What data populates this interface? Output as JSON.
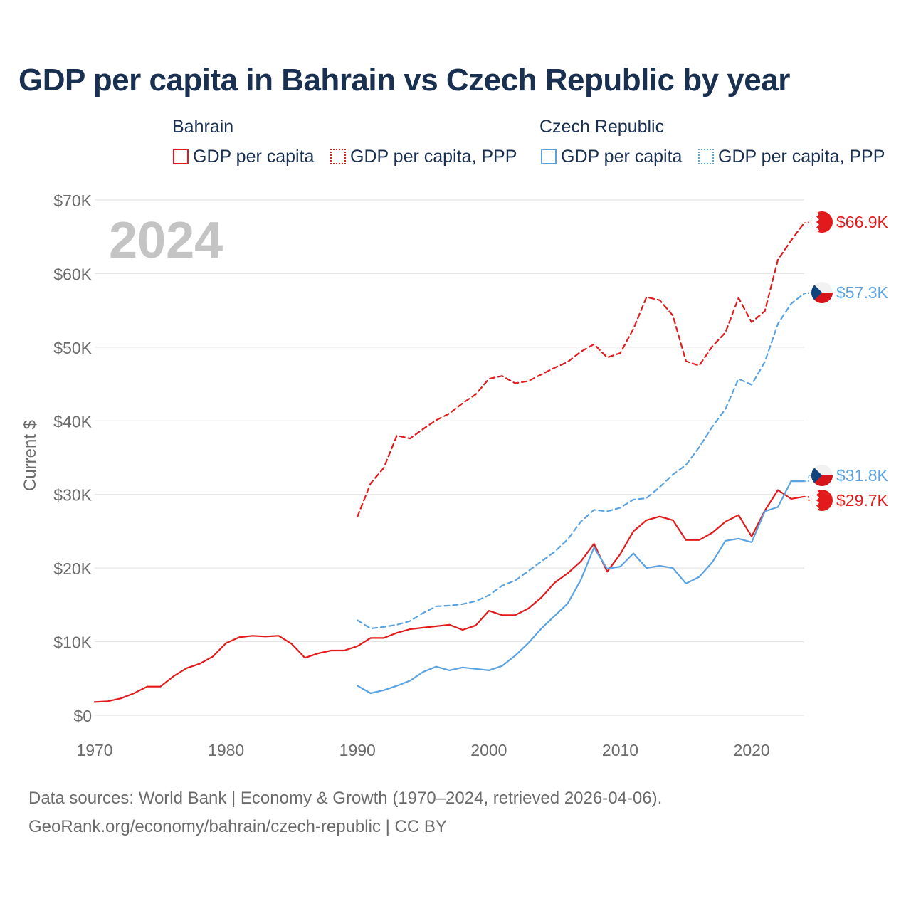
{
  "title": "GDP per capita in Bahrain vs Czech Republic by year",
  "legend": {
    "groups": [
      {
        "title": "Bahrain",
        "items": [
          "GDP per capita",
          "GDP per capita, PPP"
        ]
      },
      {
        "title": "Czech Republic",
        "items": [
          "GDP per capita",
          "GDP per capita, PPP"
        ]
      }
    ]
  },
  "footer": {
    "line1": "Data sources: World Bank | Economy & Growth (1970–2024, retrieved 2026-04-06).",
    "line2": "GeoRank.org/economy/bahrain/czech-republic | CC BY"
  },
  "colors": {
    "bahrain": "#e31a1c",
    "czech": "#5ba3e0",
    "grid": "#e6e6e6",
    "axis_text": "#6b6b6b",
    "year_watermark": "#c4c4c4"
  },
  "chart_data": {
    "type": "line",
    "year_label": "2024",
    "ylabel": "Current $",
    "xlim": [
      1970,
      2024
    ],
    "ylim": [
      0,
      70000
    ],
    "x_ticks": [
      1970,
      1980,
      1990,
      2000,
      2010,
      2020
    ],
    "x_tick_labels": [
      "1970",
      "1980",
      "1990",
      "2000",
      "2010",
      "2020"
    ],
    "y_ticks": [
      0,
      10000,
      20000,
      30000,
      40000,
      50000,
      60000,
      70000
    ],
    "y_tick_labels": [
      "$0",
      "$10K",
      "$20K",
      "$30K",
      "$40K",
      "$50K",
      "$60K",
      "$70K"
    ],
    "series": [
      {
        "name": "Bahrain GDP per capita",
        "country": "Bahrain",
        "style": "solid",
        "color": "#e31a1c",
        "end_label": "$29.7K",
        "x": [
          1970,
          1971,
          1972,
          1973,
          1974,
          1975,
          1976,
          1977,
          1978,
          1979,
          1980,
          1981,
          1982,
          1983,
          1984,
          1985,
          1986,
          1987,
          1988,
          1989,
          1990,
          1991,
          1992,
          1993,
          1994,
          1995,
          1996,
          1997,
          1998,
          1999,
          2000,
          2001,
          2002,
          2003,
          2004,
          2005,
          2006,
          2007,
          2008,
          2009,
          2010,
          2011,
          2012,
          2013,
          2014,
          2015,
          2016,
          2017,
          2018,
          2019,
          2020,
          2021,
          2022,
          2023,
          2024
        ],
        "y": [
          1800,
          1900,
          2300,
          3000,
          3900,
          3900,
          5300,
          6400,
          7000,
          8000,
          9800,
          10600,
          10800,
          10700,
          10800,
          9700,
          7800,
          8400,
          8800,
          8800,
          9400,
          10500,
          10500,
          11200,
          11700,
          11900,
          12100,
          12300,
          11600,
          12200,
          14200,
          13600,
          13600,
          14500,
          16000,
          18000,
          19300,
          20900,
          23300,
          19500,
          21900,
          25000,
          26500,
          27000,
          26500,
          23800,
          23800,
          24800,
          26300,
          27200,
          24300,
          27800,
          30600,
          29400,
          29700
        ]
      },
      {
        "name": "Bahrain GDP per capita, PPP",
        "country": "Bahrain",
        "style": "dashed",
        "color": "#e31a1c",
        "end_label": "$66.9K",
        "x": [
          1990,
          1991,
          1992,
          1993,
          1994,
          1995,
          1996,
          1997,
          1998,
          1999,
          2000,
          2001,
          2002,
          2003,
          2004,
          2005,
          2006,
          2007,
          2008,
          2009,
          2010,
          2011,
          2012,
          2013,
          2014,
          2015,
          2016,
          2017,
          2018,
          2019,
          2020,
          2021,
          2022,
          2023,
          2024
        ],
        "y": [
          27000,
          31500,
          33600,
          38000,
          37600,
          38900,
          40100,
          41000,
          42400,
          43600,
          45700,
          46100,
          45100,
          45400,
          46300,
          47200,
          48000,
          49400,
          50400,
          48600,
          49200,
          52500,
          56800,
          56400,
          54300,
          48100,
          47500,
          50100,
          52000,
          56700,
          53400,
          54900,
          61900,
          64500,
          66900
        ]
      },
      {
        "name": "Czech Republic GDP per capita",
        "country": "Czech Republic",
        "style": "solid",
        "color": "#5ba3e0",
        "end_label": "$31.8K",
        "x": [
          1990,
          1991,
          1992,
          1993,
          1994,
          1995,
          1996,
          1997,
          1998,
          1999,
          2000,
          2001,
          2002,
          2003,
          2004,
          2005,
          2006,
          2007,
          2008,
          2009,
          2010,
          2011,
          2012,
          2013,
          2014,
          2015,
          2016,
          2017,
          2018,
          2019,
          2020,
          2021,
          2022,
          2023,
          2024
        ],
        "y": [
          4000,
          3000,
          3400,
          4000,
          4700,
          5900,
          6600,
          6100,
          6500,
          6300,
          6100,
          6700,
          8100,
          9800,
          11800,
          13500,
          15200,
          18400,
          22800,
          19900,
          20200,
          22000,
          20000,
          20300,
          20000,
          17900,
          18800,
          20800,
          23700,
          24000,
          23500,
          27700,
          28300,
          31800,
          31800
        ]
      },
      {
        "name": "Czech Republic GDP per capita, PPP",
        "country": "Czech Republic",
        "style": "dashed",
        "color": "#5ba3e0",
        "end_label": "$57.3K",
        "x": [
          1990,
          1991,
          1992,
          1993,
          1994,
          1995,
          1996,
          1997,
          1998,
          1999,
          2000,
          2001,
          2002,
          2003,
          2004,
          2005,
          2006,
          2007,
          2008,
          2009,
          2010,
          2011,
          2012,
          2013,
          2014,
          2015,
          2016,
          2017,
          2018,
          2019,
          2020,
          2021,
          2022,
          2023,
          2024
        ],
        "y": [
          12900,
          11800,
          12000,
          12300,
          12800,
          13900,
          14800,
          14900,
          15100,
          15500,
          16300,
          17600,
          18300,
          19600,
          20900,
          22200,
          23900,
          26300,
          27900,
          27700,
          28200,
          29300,
          29500,
          31000,
          32700,
          34000,
          36400,
          39200,
          41600,
          45700,
          44900,
          48000,
          53200,
          55900,
          57300
        ]
      }
    ]
  }
}
